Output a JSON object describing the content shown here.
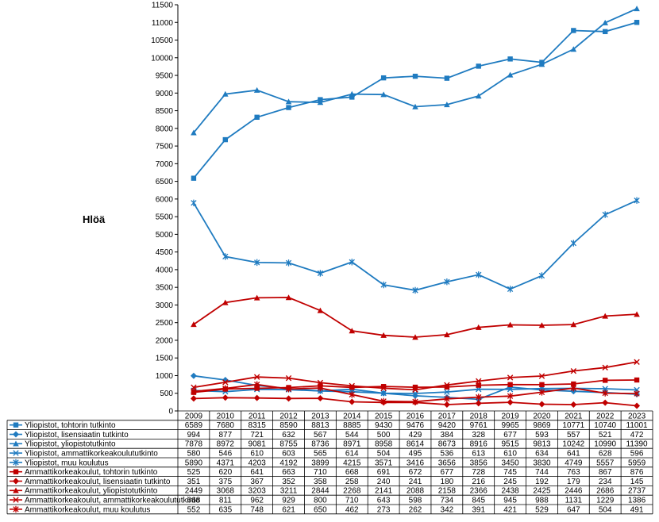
{
  "chart_data": {
    "type": "line",
    "ylabel": "Hlöä",
    "ylim": [
      0,
      11500
    ],
    "yticks": [
      0,
      500,
      1000,
      1500,
      2000,
      2500,
      3000,
      3500,
      4000,
      4500,
      5000,
      5500,
      6000,
      6500,
      7000,
      7500,
      8000,
      8500,
      9000,
      9500,
      10000,
      10500,
      11000,
      11500
    ],
    "grid": false,
    "legend": "data table below chart",
    "x": [
      "2009",
      "2010",
      "2011",
      "2012",
      "2013",
      "2014",
      "2015",
      "2016",
      "2017",
      "2018",
      "2019",
      "2020",
      "2021",
      "2022",
      "2023"
    ],
    "series": [
      {
        "name": "Yliopistot, tohtorin tutkinto",
        "color": "#1F7BC0",
        "marker": "square",
        "values": [
          6589,
          7680,
          8315,
          8590,
          8813,
          8885,
          9430,
          9476,
          9420,
          9761,
          9965,
          9869,
          10771,
          10740,
          11001
        ]
      },
      {
        "name": "Yliopistot, lisensiaatin tutkinto",
        "color": "#1F7BC0",
        "marker": "diamond",
        "values": [
          994,
          877,
          721,
          632,
          567,
          544,
          500,
          429,
          384,
          328,
          677,
          593,
          557,
          521,
          472
        ]
      },
      {
        "name": "Yliopistot, yliopistotutkinto",
        "color": "#1F7BC0",
        "marker": "triangle",
        "values": [
          7878,
          8972,
          9081,
          8755,
          8736,
          8971,
          8958,
          8614,
          8673,
          8916,
          9515,
          9813,
          10242,
          10990,
          11390
        ]
      },
      {
        "name": "Yliopistot, ammattikorkeakoulututkinto",
        "color": "#1F7BC0",
        "marker": "x",
        "values": [
          580,
          546,
          610,
          603,
          565,
          614,
          504,
          495,
          536,
          613,
          610,
          634,
          641,
          628,
          596
        ]
      },
      {
        "name": "Yliopistot, muu koulutus",
        "color": "#1F7BC0",
        "marker": "star",
        "values": [
          5890,
          4371,
          4203,
          4192,
          3899,
          4215,
          3571,
          3416,
          3656,
          3856,
          3450,
          3830,
          4749,
          5557,
          5959
        ]
      },
      {
        "name": "Ammattikorkeakoulut, tohtorin tutkinto",
        "color": "#C00000",
        "marker": "square",
        "values": [
          525,
          620,
          641,
          663,
          710,
          668,
          691,
          672,
          677,
          728,
          745,
          744,
          763,
          867,
          876
        ]
      },
      {
        "name": "Ammattikorkeakoulut, lisensiaatin tutkinto",
        "color": "#C00000",
        "marker": "diamond",
        "values": [
          351,
          375,
          367,
          352,
          358,
          258,
          240,
          241,
          180,
          216,
          245,
          192,
          179,
          234,
          145
        ]
      },
      {
        "name": "Ammattikorkeakoulut, yliopistotutkinto",
        "color": "#C00000",
        "marker": "triangle",
        "values": [
          2449,
          3068,
          3203,
          3211,
          2844,
          2268,
          2141,
          2088,
          2158,
          2366,
          2438,
          2425,
          2446,
          2686,
          2737
        ]
      },
      {
        "name": "Ammattikorkeakoulut, ammattikorkeakoulututkinto",
        "color": "#C00000",
        "marker": "x",
        "values": [
          668,
          811,
          962,
          929,
          800,
          710,
          643,
          598,
          734,
          845,
          945,
          988,
          1131,
          1229,
          1386
        ]
      },
      {
        "name": "Ammattikorkeakoulut, muu koulutus",
        "color": "#C00000",
        "marker": "star",
        "values": [
          552,
          635,
          748,
          621,
          650,
          462,
          273,
          262,
          342,
          391,
          421,
          529,
          647,
          504,
          491
        ]
      }
    ]
  }
}
